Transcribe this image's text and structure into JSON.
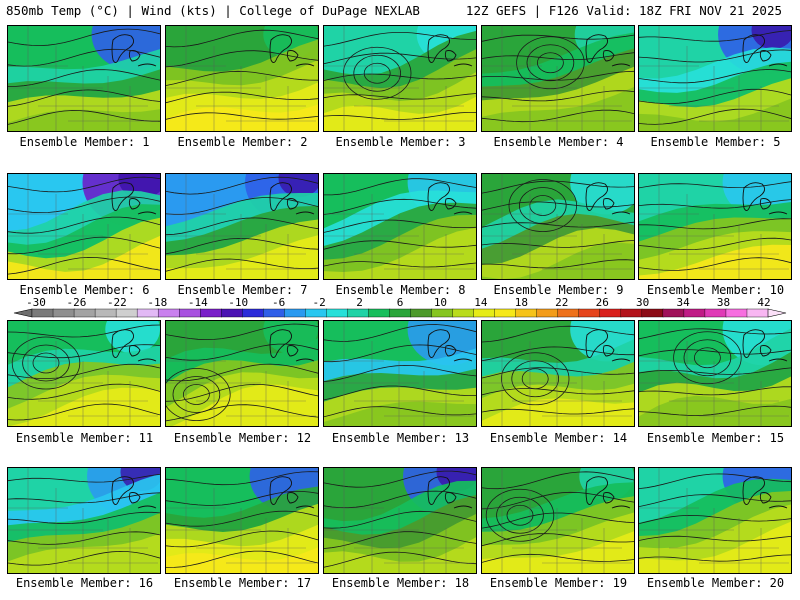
{
  "header": {
    "left": "850mb Temp (°C) | Wind (kts) | College of DuPage NEXLAB",
    "right": "12Z GEFS | F126 Valid: 18Z FRI NOV 21 2025"
  },
  "members": [
    {
      "label": "Ensemble Member: 1",
      "member": 1
    },
    {
      "label": "Ensemble Member: 2",
      "member": 2
    },
    {
      "label": "Ensemble Member: 3",
      "member": 3
    },
    {
      "label": "Ensemble Member: 4",
      "member": 4
    },
    {
      "label": "Ensemble Member: 5",
      "member": 5
    },
    {
      "label": "Ensemble Member: 6",
      "member": 6
    },
    {
      "label": "Ensemble Member: 7",
      "member": 7
    },
    {
      "label": "Ensemble Member: 8",
      "member": 8
    },
    {
      "label": "Ensemble Member: 9",
      "member": 9
    },
    {
      "label": "Ensemble Member: 10",
      "member": 10
    },
    {
      "label": "Ensemble Member: 11",
      "member": 11
    },
    {
      "label": "Ensemble Member: 12",
      "member": 12
    },
    {
      "label": "Ensemble Member: 13",
      "member": 13
    },
    {
      "label": "Ensemble Member: 14",
      "member": 14
    },
    {
      "label": "Ensemble Member: 15",
      "member": 15
    },
    {
      "label": "Ensemble Member: 16",
      "member": 16
    },
    {
      "label": "Ensemble Member: 17",
      "member": 17
    },
    {
      "label": "Ensemble Member: 18",
      "member": 18
    },
    {
      "label": "Ensemble Member: 19",
      "member": 19
    },
    {
      "label": "Ensemble Member: 20",
      "member": 20
    }
  ],
  "colorbar": {
    "tick_labels": [
      "-30",
      "-26",
      "-22",
      "-18",
      "-14",
      "-10",
      "-6",
      "-2",
      "2",
      "6",
      "10",
      "14",
      "18",
      "22",
      "26",
      "30",
      "34",
      "38",
      "42"
    ],
    "colors": [
      "#7a7a7a",
      "#8f8f8f",
      "#a3a3a3",
      "#b8b8b8",
      "#cfcfcf",
      "#e2b9f5",
      "#c980ee",
      "#a852e0",
      "#7a1fc9",
      "#4b12b3",
      "#2b2bd9",
      "#2f5fe8",
      "#2a9af0",
      "#29c7f0",
      "#27e0d9",
      "#1fd3a6",
      "#16be5c",
      "#2aa53a",
      "#4d9a2a",
      "#86c51f",
      "#b9dc1c",
      "#e6ec18",
      "#f6e81a",
      "#f6c319",
      "#f39c1a",
      "#ee711b",
      "#e6451c",
      "#d9201c",
      "#b3121a",
      "#8c0c16",
      "#a0125a",
      "#c01b86",
      "#e03ab6",
      "#f76ee0",
      "#f8b6f2"
    ]
  }
}
